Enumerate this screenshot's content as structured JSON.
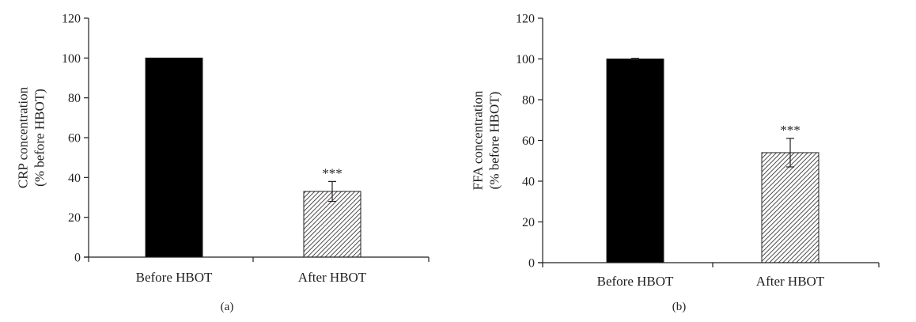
{
  "chart_data": [
    {
      "id": "a",
      "type": "bar",
      "panel_label": "(a)",
      "title": "",
      "ylabel_lines": [
        "CRP concentration",
        "(% before HBOT)"
      ],
      "xlabel": "",
      "categories": [
        "Before HBOT",
        "After HBOT"
      ],
      "values": [
        100,
        33
      ],
      "error": [
        0,
        5
      ],
      "annotations": [
        "",
        "***"
      ],
      "ylim": [
        0,
        120
      ],
      "yticks": [
        0,
        20,
        40,
        60,
        80,
        100,
        120
      ],
      "bar_fills": [
        "solid-black",
        "diagonal-hatch"
      ],
      "grid": false
    },
    {
      "id": "b",
      "type": "bar",
      "panel_label": "(b)",
      "title": "",
      "ylabel_lines": [
        "FFA concentration",
        "(% before HBOT)"
      ],
      "xlabel": "",
      "categories": [
        "Before HBOT",
        "After HBOT"
      ],
      "values": [
        100,
        54
      ],
      "error": [
        0.3,
        7
      ],
      "annotations": [
        "",
        "***"
      ],
      "ylim": [
        0,
        120
      ],
      "yticks": [
        0,
        20,
        40,
        60,
        80,
        100,
        120
      ],
      "bar_fills": [
        "solid-black",
        "diagonal-hatch"
      ],
      "grid": false
    }
  ],
  "colors": {
    "ink": "#231f20",
    "bar_solid": "#000000",
    "hatch": "#231f20"
  }
}
